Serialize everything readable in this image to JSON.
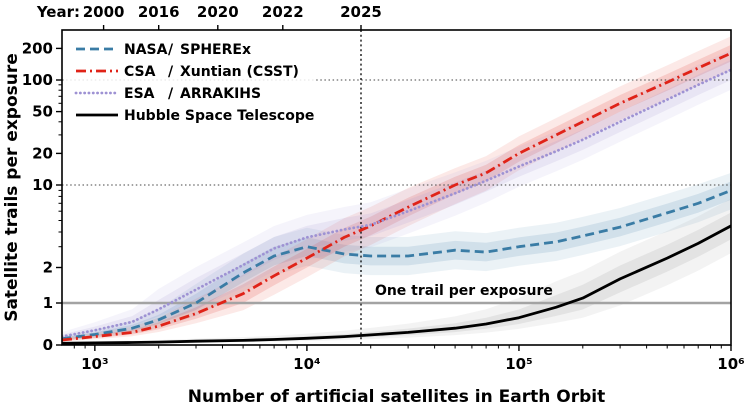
{
  "chart_data": {
    "type": "line",
    "title": "",
    "xlabel": "Number of artificial satellites in Earth Orbit",
    "ylabel": "Satellite trails per exposure",
    "xscale": "log",
    "yscale": "linear below 1, log above 1",
    "xlim": [
      700,
      1000000
    ],
    "ylim": [
      0,
      300
    ],
    "grid_y_dotted": [
      10,
      100
    ],
    "x_ticks": [
      {
        "v": 1000,
        "label": "10³"
      },
      {
        "v": 10000,
        "label": "10⁴"
      },
      {
        "v": 100000,
        "label": "10⁵"
      },
      {
        "v": 1000000,
        "label": "10⁶"
      }
    ],
    "y_ticks": [
      {
        "v": 0,
        "label": "0"
      },
      {
        "v": 1,
        "label": "1"
      },
      {
        "v": 2,
        "label": "2"
      },
      {
        "v": 10,
        "label": "10"
      },
      {
        "v": 20,
        "label": "20"
      },
      {
        "v": 50,
        "label": "50"
      },
      {
        "v": 100,
        "label": "100"
      },
      {
        "v": 200,
        "label": "200"
      }
    ],
    "y_minor_ticks": [
      3,
      4,
      5,
      6,
      7,
      8,
      9,
      30,
      40,
      60,
      70,
      80,
      90
    ],
    "top_axis": {
      "label": "Year:",
      "ticks": [
        {
          "label": "2000",
          "x": 1100
        },
        {
          "label": "2016",
          "x": 2000
        },
        {
          "label": "2020",
          "x": 3800
        },
        {
          "label": "2022",
          "x": 7700
        },
        {
          "label": "2025",
          "x": 18000
        }
      ]
    },
    "event_line": {
      "x": 18000,
      "style": "dotted",
      "color": "#000000"
    },
    "reference_line": {
      "y": 1,
      "color": "#a3a3a3"
    },
    "annotations": [
      {
        "text": "One trail per exposure",
        "x": 55000,
        "y": 1
      }
    ],
    "legend": {
      "position": "top-left"
    },
    "x": [
      700,
      1000,
      1500,
      2000,
      3000,
      5000,
      7000,
      10000,
      15000,
      20000,
      30000,
      50000,
      70000,
      100000,
      150000,
      200000,
      300000,
      500000,
      700000,
      1000000
    ],
    "series": [
      {
        "id": "nasa-spherex",
        "label": "NASA / SPHEREx",
        "org": "NASA",
        "mission": "SPHEREx",
        "color": "#3a7ca5",
        "style": "dashed",
        "band_inner": 1.2,
        "band_outer": 1.45,
        "y": [
          0.15,
          0.25,
          0.4,
          0.6,
          1.0,
          1.8,
          2.5,
          3.0,
          2.6,
          2.5,
          2.5,
          2.8,
          2.7,
          3.0,
          3.3,
          3.7,
          4.4,
          5.8,
          7.0,
          9.0
        ]
      },
      {
        "id": "csa-xuntian-csst",
        "label": "CSA / Xuntian (CSST)",
        "org": "CSA",
        "mission": "Xuntian (CSST)",
        "color": "#e02318",
        "style": "dashdot",
        "band_inner": 1.2,
        "band_outer": 1.45,
        "y": [
          0.12,
          0.2,
          0.3,
          0.45,
          0.75,
          1.2,
          1.7,
          2.4,
          3.6,
          4.5,
          6.5,
          10,
          13,
          20,
          30,
          40,
          60,
          95,
          130,
          180
        ]
      },
      {
        "id": "esa-arrakihs",
        "label": "ESA / ARRAKIHS",
        "org": "ESA",
        "mission": "ARRAKIHS",
        "color": "#9e92d3",
        "style": "dotted",
        "band_inner": 1.25,
        "band_outer": 1.55,
        "y": [
          0.2,
          0.35,
          0.55,
          0.85,
          1.3,
          2.1,
          2.9,
          3.6,
          4.2,
          4.6,
          6.0,
          8.5,
          11,
          15,
          21,
          27,
          40,
          65,
          90,
          125
        ]
      },
      {
        "id": "hubble-space-telescope",
        "label": "Hubble Space Telescope",
        "org": null,
        "mission": null,
        "color": "#000000",
        "band_color": "#8a8a8a",
        "style": "solid",
        "band_inner": 1.3,
        "band_outer": 1.7,
        "y": [
          0.04,
          0.05,
          0.06,
          0.07,
          0.09,
          0.11,
          0.13,
          0.16,
          0.2,
          0.24,
          0.3,
          0.4,
          0.5,
          0.65,
          0.9,
          1.1,
          1.6,
          2.4,
          3.2,
          4.5
        ]
      }
    ]
  }
}
